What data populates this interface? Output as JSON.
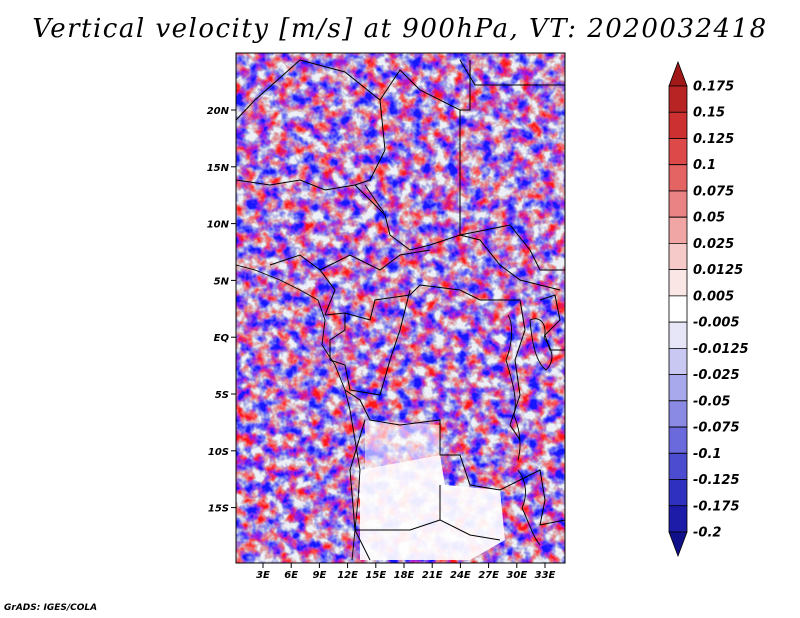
{
  "title": "Vertical velocity [m/s] at 900hPa, VT: 2020032418",
  "credit": "GrADS: IGES/COLA",
  "map": {
    "lat_labels": [
      "20N",
      "15N",
      "10N",
      "5N",
      "EQ",
      "5S",
      "10S",
      "15S"
    ],
    "lon_labels": [
      "3E",
      "6E",
      "9E",
      "12E",
      "15E",
      "18E",
      "21E",
      "24E",
      "27E",
      "30E",
      "33E"
    ]
  },
  "colorbar": {
    "labels": [
      "0.175",
      "0.15",
      "0.125",
      "0.1",
      "0.075",
      "0.05",
      "0.025",
      "0.0125",
      "0.005",
      "-0.005",
      "-0.0125",
      "-0.025",
      "-0.05",
      "-0.075",
      "-0.1",
      "-0.125",
      "-0.175",
      "-0.2"
    ],
    "colors": [
      "#a01818",
      "#b82424",
      "#cc3030",
      "#dd4848",
      "#e46464",
      "#ea8484",
      "#f1a6a6",
      "#f7caca",
      "#fbe6e6",
      "#ffffff",
      "#e6e6f8",
      "#c8c8f2",
      "#a8a8ec",
      "#8a8ae4",
      "#6a6adc",
      "#4c4cd0",
      "#3030c0",
      "#1c1ca8",
      "#10108a"
    ]
  }
}
